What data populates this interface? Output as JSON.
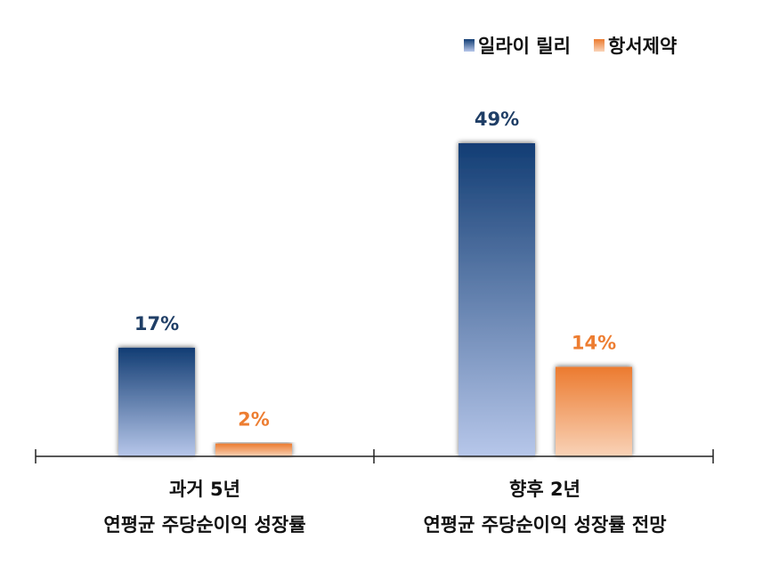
{
  "chart_data": {
    "type": "bar",
    "categories": [
      {
        "line1": "과거 5년",
        "line2": "연평균 주당순이익 성장률"
      },
      {
        "line1": "향후 2년",
        "line2": "연평균 주당순이익 성장률 전망"
      }
    ],
    "series": [
      {
        "name": "일라이 릴리",
        "values": [
          17,
          49
        ],
        "labels": [
          "17%",
          "49%"
        ],
        "color": "#1f4e8c"
      },
      {
        "name": "항서제약",
        "values": [
          2,
          14
        ],
        "labels": [
          "2%",
          "14%"
        ],
        "color": "#ed7d31"
      }
    ],
    "ylim": [
      0,
      49
    ],
    "legend": "top-right",
    "grid": false
  }
}
